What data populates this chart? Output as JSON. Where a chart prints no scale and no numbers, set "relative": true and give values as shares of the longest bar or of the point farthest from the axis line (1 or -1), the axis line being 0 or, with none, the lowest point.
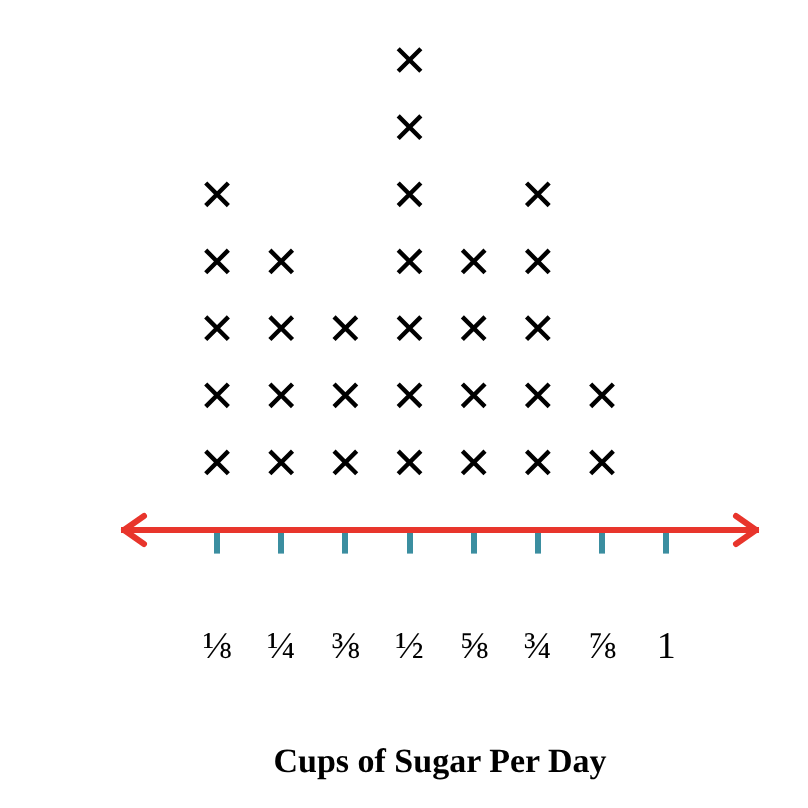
{
  "chart_data": {
    "type": "scatter",
    "xlabel": "Cups of Sugar Per Day",
    "categories": [
      "⅛",
      "¼",
      "⅜",
      "½",
      "⅝",
      "¾",
      "⅞",
      "1"
    ],
    "series": [
      {
        "color": "#000000",
        "x": [
          "⅛",
          "⅛",
          "⅛",
          "⅛",
          "⅛",
          "¼",
          "¼",
          "¼",
          "¼",
          "⅜",
          "⅜",
          "⅜",
          "½",
          "½",
          "½",
          "½",
          "½",
          "½",
          "½",
          "⅝",
          "⅝",
          "⅝",
          "⅝",
          "¾",
          "¾",
          "¾",
          "¾",
          "¾",
          "⅞",
          "⅞"
        ],
        "values": [
          0.143,
          0.286,
          0.429,
          0.571,
          0.714,
          0.143,
          0.286,
          0.429,
          0.571,
          0.143,
          0.286,
          0.429,
          0.143,
          0.286,
          0.429,
          0.571,
          0.714,
          0.857,
          1,
          0.143,
          0.286,
          0.429,
          0.571,
          0.143,
          0.286,
          0.429,
          0.571,
          0.714,
          0.143,
          0.286
        ]
      }
    ],
    "relative": true,
    "marker": "cross",
    "tick_labels": "x",
    "grid": false,
    "legend": false
  }
}
